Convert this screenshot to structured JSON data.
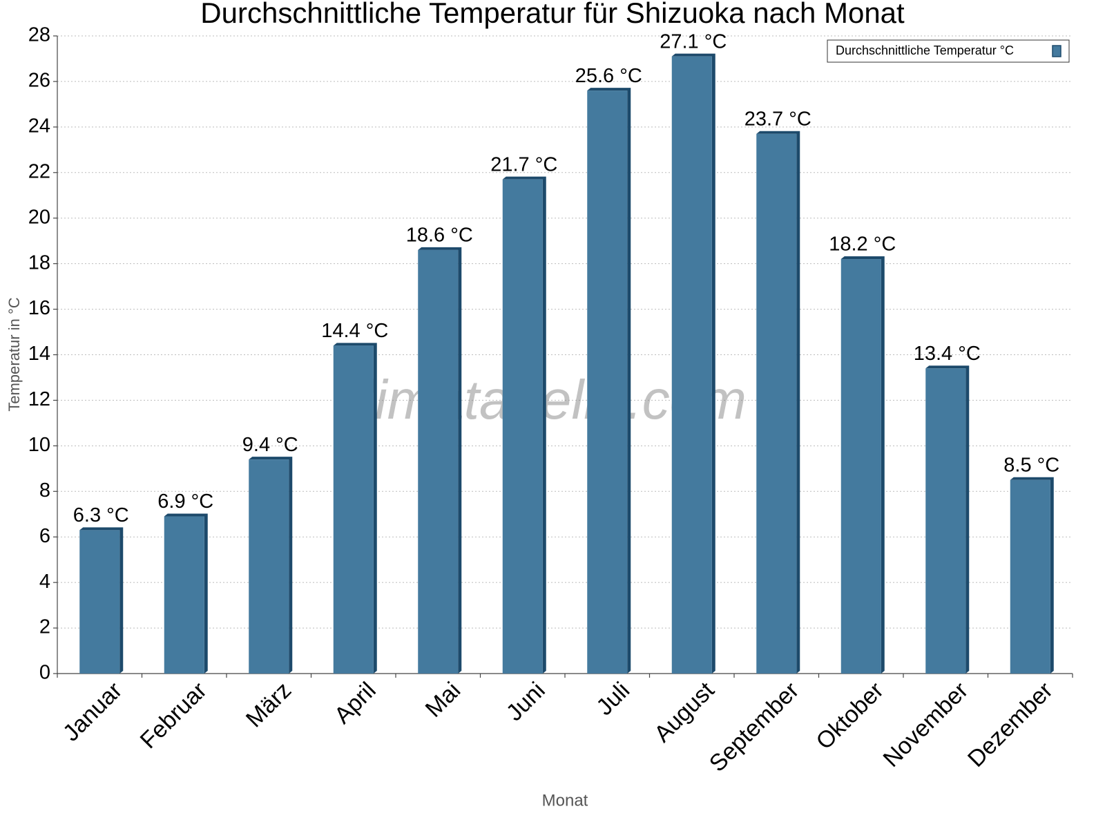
{
  "chart_data": {
    "type": "bar",
    "title": "Durchschnittliche Temperatur für Shizuoka nach Monat",
    "x_label": "Monat",
    "y_label": "Temperatur in °C",
    "watermark": "klimatabelle.com",
    "categories": [
      "Januar",
      "Februar",
      "März",
      "April",
      "Mai",
      "Juni",
      "Juli",
      "August",
      "September",
      "Oktober",
      "November",
      "Dezember"
    ],
    "series": [
      {
        "name": "Durchschnittliche Temperatur °C",
        "color": "#447a9e",
        "values": [
          6.3,
          6.9,
          9.4,
          14.4,
          18.6,
          21.7,
          25.6,
          27.1,
          23.7,
          18.2,
          13.4,
          8.5
        ],
        "value_labels": [
          "6.3 °C",
          "6.9 °C",
          "9.4 °C",
          "14.4 °C",
          "18.6 °C",
          "21.7 °C",
          "25.6 °C",
          "27.1 °C",
          "23.7 °C",
          "18.2 °C",
          "13.4 °C",
          "8.5 °C"
        ]
      }
    ],
    "ylim": [
      0,
      28
    ],
    "yticks": [
      0,
      2,
      4,
      6,
      8,
      10,
      12,
      14,
      16,
      18,
      20,
      22,
      24,
      26,
      28
    ],
    "grid": true,
    "legend": "upper right"
  }
}
